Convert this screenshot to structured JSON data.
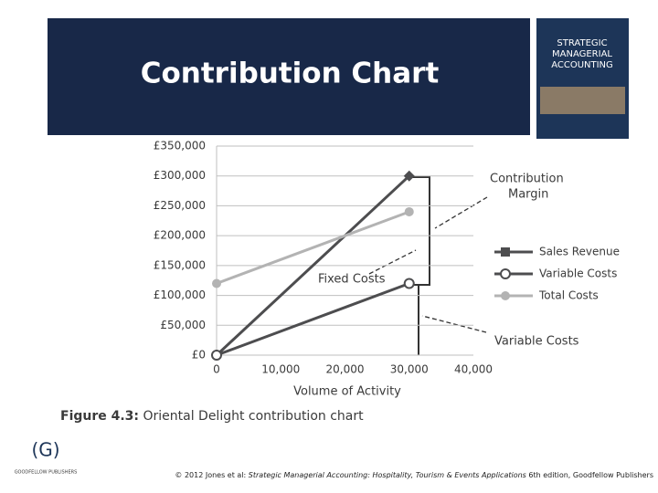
{
  "slide": {
    "title": "Contribution Chart",
    "book_cover": [
      "STRATEGIC",
      "MANAGERIAL",
      "ACCOUNTING"
    ],
    "logo": {
      "mark": "(G)",
      "name": "GOODFELLOW PUBLISHERS"
    },
    "footer": [
      "© 2012 Jones et al: ",
      "Strategic Managerial Accounting: Hospitality, Tourism & Events Applications",
      " 6th edition, Goodfellow Publishers"
    ]
  },
  "chart_data": {
    "type": "line",
    "caption": [
      "Figure 4.3:",
      " Oriental Delight contribution chart"
    ],
    "x_label": "Volume of Activity",
    "x": [
      0,
      30000
    ],
    "xlim": [
      0,
      40000
    ],
    "xticks": [
      0,
      {
        "value": 10000,
        "label": "10,000"
      },
      {
        "value": 20000,
        "label": "20,000"
      },
      {
        "value": 30000,
        "label": "30,000"
      },
      {
        "value": 40000,
        "label": "40,000"
      }
    ],
    "ylim": [
      0,
      350000
    ],
    "yticks": [
      {
        "value": 0,
        "label": "£0"
      },
      {
        "value": 50000,
        "label": "£50,000"
      },
      {
        "value": 100000,
        "label": "£100,000"
      },
      {
        "value": 150000,
        "label": "£150,000"
      },
      {
        "value": 200000,
        "label": "£200,000"
      },
      {
        "value": 250000,
        "label": "£250,000"
      },
      {
        "value": 300000,
        "label": "£300,000"
      },
      {
        "value": 350000,
        "label": "£350,000"
      }
    ],
    "grid": true,
    "series": [
      {
        "name": "Sales Revenue",
        "color": "#4d4d4f",
        "marker": "diamond",
        "values": [
          0,
          300000
        ]
      },
      {
        "name": "Variable Costs",
        "color": "#4d4d4f",
        "marker": "open-circle",
        "values": [
          0,
          120000
        ]
      },
      {
        "name": "Total Costs",
        "color": "#b3b3b3",
        "marker": "circle",
        "values": [
          120000,
          240000
        ]
      }
    ],
    "annotations": [
      "Contribution",
      "Margin",
      "Fixed Costs",
      "Variable Costs"
    ]
  }
}
